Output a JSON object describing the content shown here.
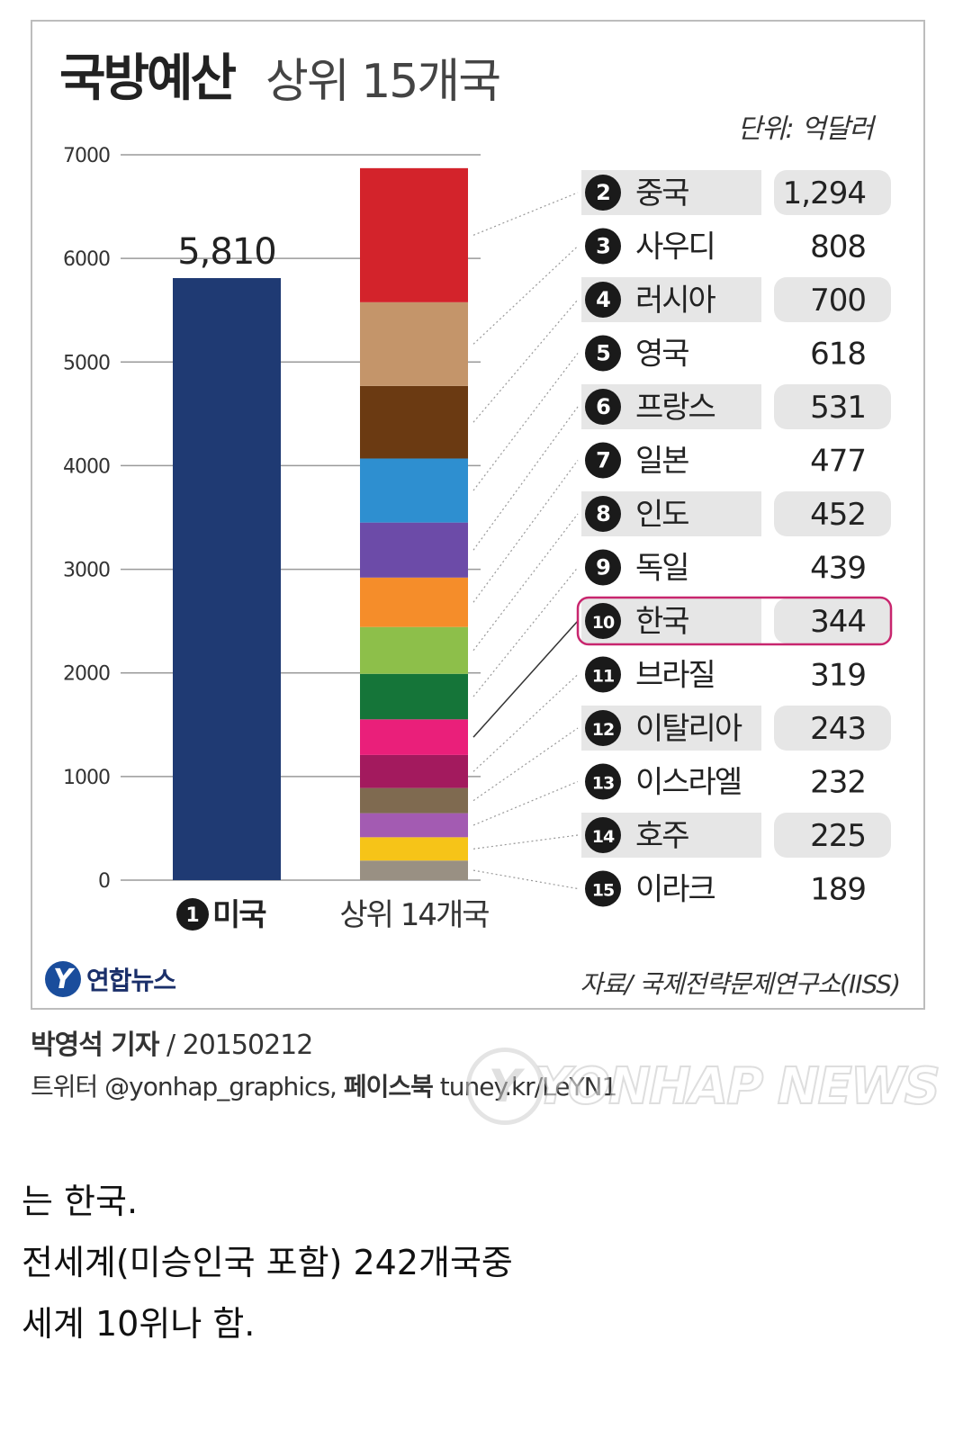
{
  "chart_data": {
    "type": "bar",
    "title": "국방예산",
    "subtitle": "상위 15개국",
    "unit": "단위: 억달러",
    "ylim": [
      0,
      7000
    ],
    "yticks": [
      "7000",
      "6000",
      "5000",
      "4000",
      "3000",
      "2000",
      "1000",
      "0"
    ],
    "grid": true,
    "bars": [
      {
        "label": "미국",
        "rank": "1",
        "value": 5810,
        "value_label": "5,810",
        "color": "#1f3a73"
      },
      {
        "label": "상위 14개국",
        "stacked": true
      }
    ],
    "series": [
      {
        "rank": "2",
        "name": "중국",
        "value": 1294,
        "value_label": "1,294",
        "color": "#d3232b"
      },
      {
        "rank": "3",
        "name": "사우디",
        "value": 808,
        "value_label": "808",
        "color": "#c4956a"
      },
      {
        "rank": "4",
        "name": "러시아",
        "value": 700,
        "value_label": "700",
        "color": "#6b3a12"
      },
      {
        "rank": "5",
        "name": "영국",
        "value": 618,
        "value_label": "618",
        "color": "#2e8fd0"
      },
      {
        "rank": "6",
        "name": "프랑스",
        "value": 531,
        "value_label": "531",
        "color": "#6c4ba8"
      },
      {
        "rank": "7",
        "name": "일본",
        "value": 477,
        "value_label": "477",
        "color": "#f58d2a"
      },
      {
        "rank": "8",
        "name": "인도",
        "value": 452,
        "value_label": "452",
        "color": "#8dbf4a"
      },
      {
        "rank": "9",
        "name": "독일",
        "value": 439,
        "value_label": "439",
        "color": "#157539"
      },
      {
        "rank": "10",
        "name": "한국",
        "value": 344,
        "value_label": "344",
        "color": "#ea1f7a",
        "highlight": true
      },
      {
        "rank": "11",
        "name": "브라질",
        "value": 319,
        "value_label": "319",
        "color": "#a31a5e"
      },
      {
        "rank": "12",
        "name": "이탈리아",
        "value": 243,
        "value_label": "243",
        "color": "#7f6a50"
      },
      {
        "rank": "13",
        "name": "이스라엘",
        "value": 232,
        "value_label": "232",
        "color": "#a35bb2"
      },
      {
        "rank": "14",
        "name": "호주",
        "value": 225,
        "value_label": "225",
        "color": "#f6c418"
      },
      {
        "rank": "15",
        "name": "이라크",
        "value": 189,
        "value_label": "189",
        "color": "#999083"
      }
    ],
    "source": "자료/ 국제전략문제연구소(IISS)"
  },
  "brand": {
    "logo_glyph": "Y",
    "name": "연합뉴스"
  },
  "credits": {
    "line1_author": "박영석 기자",
    "line1_date": " / 20150212",
    "line2_prefix": "트위터 @yonhap_graphics, ",
    "line2_bold": "페이스북",
    "line2_suffix": " tuney.kr/LeYN1"
  },
  "watermark": {
    "logo_glyph": "Y",
    "text": "YONHAP NEWS"
  },
  "post_text": {
    "line1": "는 한국.",
    "line2": "전세계(미승인국 포함) 242개국중",
    "line3": "세계 10위나 함."
  },
  "colors": {
    "accent_highlight": "#c8266e",
    "row_bg": "#e6e6e6"
  }
}
